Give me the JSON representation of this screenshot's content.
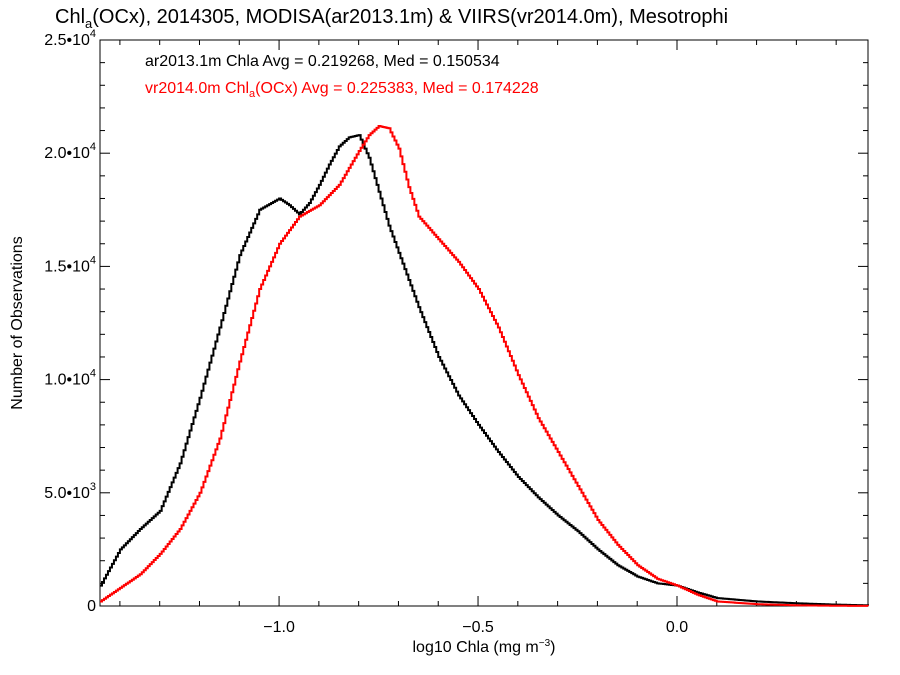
{
  "title": {
    "pre": "Chl",
    "sub": "a",
    "post": "(OCx), 2014305, MODISA(ar2013.1m) & VIIRS(vr2014.0m), Mesotrophi"
  },
  "annotations": {
    "line1": "ar2013.1m Chla Avg = 0.219268, Med = 0.150534",
    "line2_pre": "vr2014.0m Chl",
    "line2_sub": "a",
    "line2_post": "(OCx) Avg = 0.225383, Med = 0.174228"
  },
  "axes": {
    "ylabel": "Number of Observations",
    "xlabel_pre": "log10 Chla (mg m",
    "xlabel_sup": "−3",
    "xlabel_post": ")"
  },
  "chart_data": {
    "type": "line",
    "step": true,
    "xlim": [
      -1.45,
      0.48
    ],
    "ylim": [
      0,
      25000
    ],
    "xticks": [
      {
        "value": -1.0,
        "label": "−1.0"
      },
      {
        "value": -0.5,
        "label": "−0.5"
      },
      {
        "value": 0.0,
        "label": "0.0"
      }
    ],
    "yticks": [
      {
        "value": 0,
        "mant": "0",
        "exp": ""
      },
      {
        "value": 5000,
        "mant": "5.0•10",
        "exp": "3"
      },
      {
        "value": 10000,
        "mant": "1.0•10",
        "exp": "4"
      },
      {
        "value": 15000,
        "mant": "1.5•10",
        "exp": "4"
      },
      {
        "value": 20000,
        "mant": "2.0•10",
        "exp": "4"
      },
      {
        "value": 25000,
        "mant": "2.5•10",
        "exp": "4"
      }
    ],
    "grid": false,
    "series": [
      {
        "name": "ar2013.1m",
        "color": "#000000",
        "x": [
          -1.45,
          -1.4,
          -1.35,
          -1.3,
          -1.25,
          -1.2,
          -1.15,
          -1.1,
          -1.05,
          -1.0,
          -0.975,
          -0.95,
          -0.925,
          -0.9,
          -0.875,
          -0.85,
          -0.825,
          -0.8,
          -0.775,
          -0.75,
          -0.725,
          -0.7,
          -0.675,
          -0.65,
          -0.6,
          -0.55,
          -0.5,
          -0.45,
          -0.4,
          -0.35,
          -0.3,
          -0.25,
          -0.2,
          -0.15,
          -0.1,
          -0.05,
          0.0,
          0.05,
          0.1,
          0.2,
          0.3,
          0.4,
          0.48
        ],
        "y": [
          900,
          2500,
          3400,
          4200,
          6300,
          9200,
          12300,
          15500,
          17500,
          18000,
          17700,
          17300,
          17800,
          18600,
          19500,
          20300,
          20700,
          20800,
          19800,
          18300,
          16800,
          15600,
          14400,
          13200,
          11000,
          9300,
          8000,
          6800,
          5700,
          4800,
          4000,
          3300,
          2500,
          1800,
          1300,
          1000,
          900,
          600,
          350,
          200,
          120,
          60,
          30
        ]
      },
      {
        "name": "vr2014.0m",
        "color": "#ff0000",
        "x": [
          -1.45,
          -1.4,
          -1.35,
          -1.3,
          -1.25,
          -1.2,
          -1.15,
          -1.1,
          -1.05,
          -1.0,
          -0.95,
          -0.9,
          -0.85,
          -0.8,
          -0.775,
          -0.75,
          -0.725,
          -0.7,
          -0.675,
          -0.65,
          -0.6,
          -0.55,
          -0.5,
          -0.45,
          -0.4,
          -0.35,
          -0.3,
          -0.25,
          -0.2,
          -0.15,
          -0.1,
          -0.05,
          0.0,
          0.05,
          0.1,
          0.2,
          0.3,
          0.4,
          0.48
        ],
        "y": [
          200,
          800,
          1400,
          2300,
          3400,
          5000,
          7400,
          10800,
          14000,
          16000,
          17200,
          17700,
          18600,
          20100,
          20800,
          21200,
          21100,
          20200,
          18500,
          17200,
          16200,
          15200,
          14000,
          12300,
          10200,
          8300,
          6800,
          5300,
          3800,
          2700,
          1800,
          1200,
          900,
          500,
          200,
          80,
          30,
          10,
          5
        ]
      }
    ]
  }
}
